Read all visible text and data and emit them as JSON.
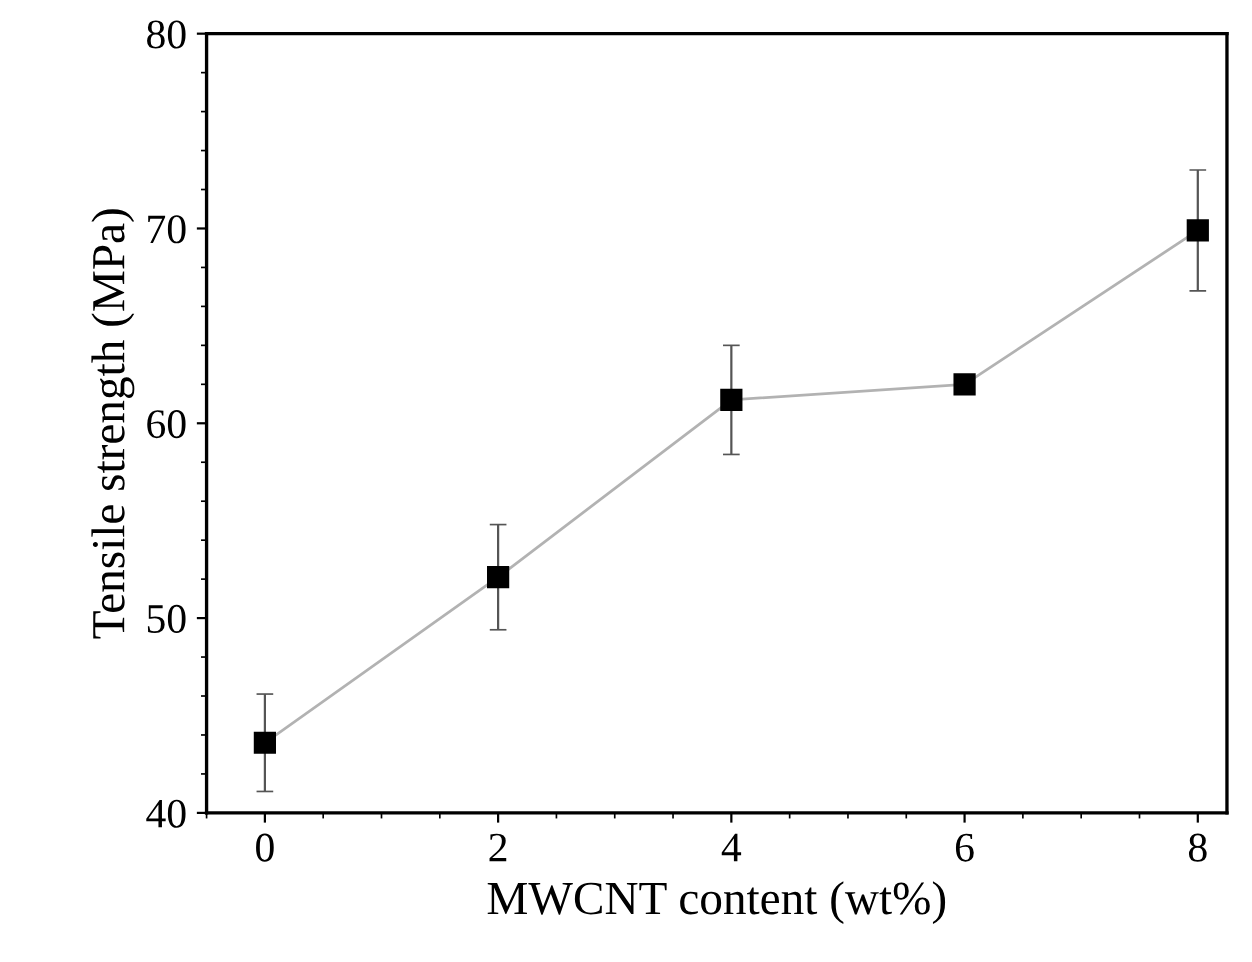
{
  "chart_data": {
    "type": "line",
    "xlabel": "MWCNT content (wt%)",
    "ylabel": "Tensile strength (MPa)",
    "x": [
      0,
      2,
      4,
      6,
      8
    ],
    "series": [
      {
        "color": "#000000",
        "values": [
          43.6,
          52.1,
          61.2,
          62.0,
          69.9
        ],
        "errors": [
          2.5,
          2.7,
          2.8,
          null,
          3.1
        ]
      }
    ],
    "marker": "square",
    "line_style": "solid",
    "grid": false,
    "legend": false,
    "xlim": [
      -0.5,
      8.25
    ],
    "ylim": [
      40,
      80
    ],
    "xticks": [
      0,
      2,
      4,
      6,
      8
    ],
    "yticks": [
      40,
      50,
      60,
      70,
      80
    ]
  }
}
